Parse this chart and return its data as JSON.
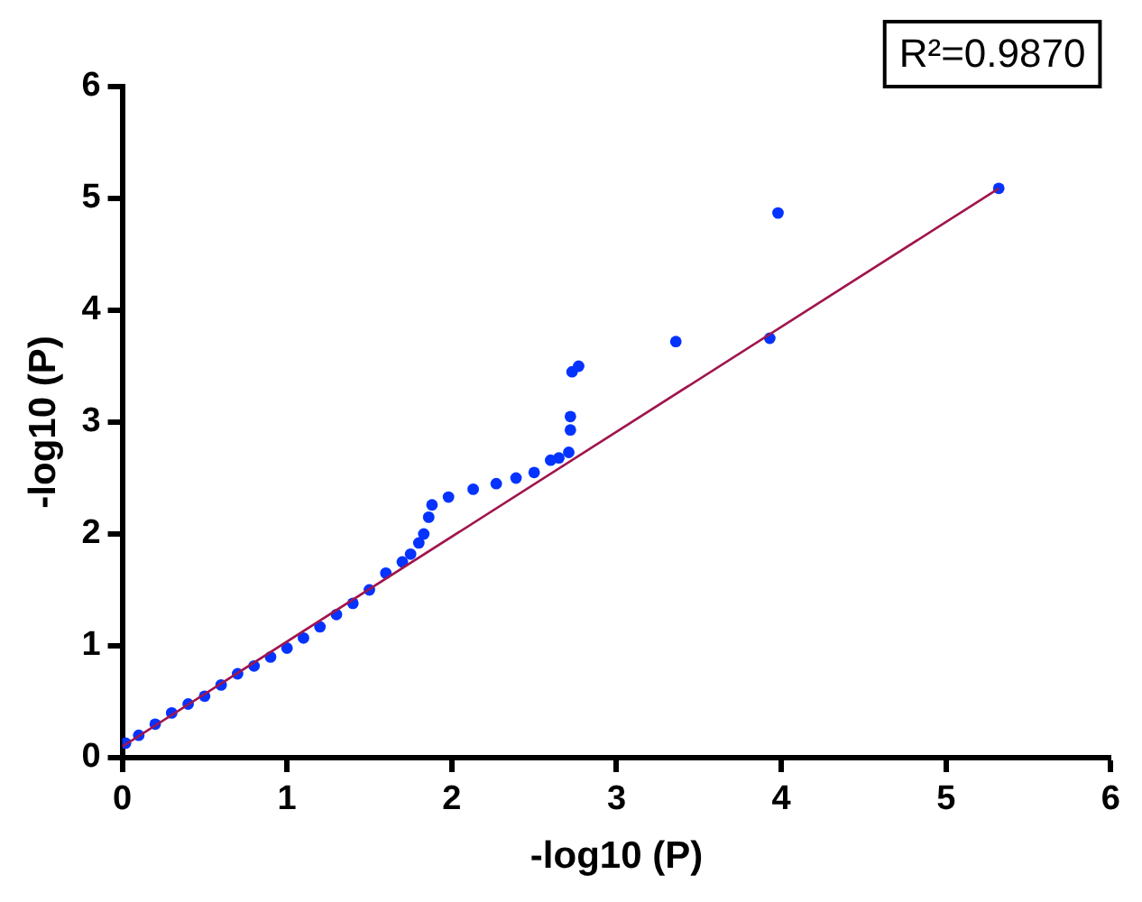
{
  "chart_data": {
    "type": "scatter",
    "xlabel": "-log10 (P)",
    "ylabel": "-log10 (P)",
    "annotations": [
      "R²=0.9870"
    ],
    "xlim": [
      0,
      6
    ],
    "xticks": [
      0,
      1,
      2,
      3,
      4,
      5,
      6
    ],
    "ylim": [
      0,
      6
    ],
    "yticks": [
      0,
      1,
      2,
      3,
      4,
      5,
      6
    ],
    "grid": false,
    "legend": false,
    "marker": "circle",
    "series": [
      {
        "color": "#0433ff",
        "x": [
          0.02,
          0.1,
          0.2,
          0.3,
          0.4,
          0.5,
          0.6,
          0.7,
          0.8,
          0.9,
          1.0,
          1.1,
          1.2,
          1.3,
          1.4,
          1.5,
          1.6,
          1.7,
          1.75,
          1.8,
          1.83,
          1.86,
          1.88,
          1.98,
          2.13,
          2.27,
          2.39,
          2.5,
          2.6,
          2.65,
          2.71,
          2.72,
          2.72,
          2.73,
          2.77,
          3.36,
          3.93,
          3.98,
          5.32
        ],
        "values": [
          0.13,
          0.2,
          0.3,
          0.4,
          0.48,
          0.55,
          0.65,
          0.75,
          0.82,
          0.9,
          0.98,
          1.07,
          1.17,
          1.28,
          1.38,
          1.5,
          1.65,
          1.75,
          1.82,
          1.92,
          2.0,
          2.15,
          2.26,
          2.33,
          2.4,
          2.45,
          2.5,
          2.55,
          2.66,
          2.68,
          2.73,
          2.93,
          3.05,
          3.45,
          3.5,
          3.72,
          3.75,
          4.87,
          5.09
        ]
      },
      {
        "type": "line",
        "color": "#a0154d",
        "marker": "none",
        "x": [
          0,
          5.32
        ],
        "values": [
          0.1,
          5.09
        ]
      }
    ]
  }
}
